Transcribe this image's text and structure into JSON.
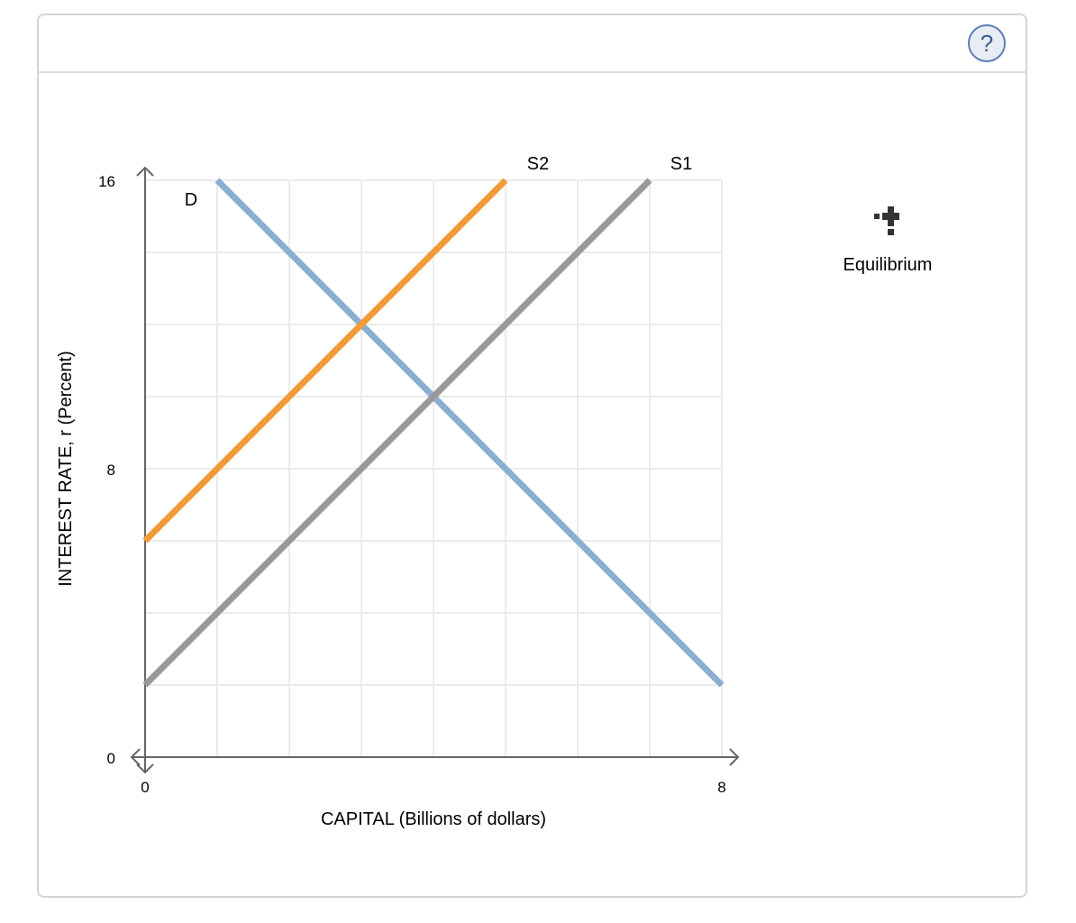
{
  "header": {
    "help_icon": "question-circle-icon",
    "help_label": "?"
  },
  "toolbox": {
    "items": [
      {
        "icon": "equilibrium-crosshair-icon",
        "label": "Equilibrium"
      }
    ]
  },
  "colors": {
    "demand": "#8caed4",
    "supply1": "#999999",
    "supply2": "#f19b38",
    "axis": "#666666",
    "grid": "#ebebeb",
    "frame": "#d4d4d4"
  },
  "chart_data": {
    "type": "line",
    "title": "",
    "xlabel": "CAPITAL (Billions of dollars)",
    "ylabel": "INTEREST RATE, r (Percent)",
    "xlim": [
      0,
      8
    ],
    "ylim": [
      0,
      16
    ],
    "x_ticks": [
      0,
      8
    ],
    "y_ticks": [
      0,
      8,
      16
    ],
    "grid": {
      "on": true,
      "x_step": 1,
      "y_step": 2
    },
    "series": [
      {
        "name": "D",
        "color": "#8caed4",
        "points": [
          [
            1,
            16
          ],
          [
            8,
            2
          ]
        ]
      },
      {
        "name": "S1",
        "color": "#999999",
        "points": [
          [
            0,
            2
          ],
          [
            7,
            16
          ]
        ]
      },
      {
        "name": "S2",
        "color": "#f19b38",
        "points": [
          [
            0,
            6
          ],
          [
            5,
            16
          ]
        ]
      }
    ],
    "intersections": [
      {
        "curves": [
          "D",
          "S1"
        ],
        "x": 4,
        "y": 10
      },
      {
        "curves": [
          "D",
          "S2"
        ],
        "x": 3,
        "y": 12
      }
    ]
  }
}
